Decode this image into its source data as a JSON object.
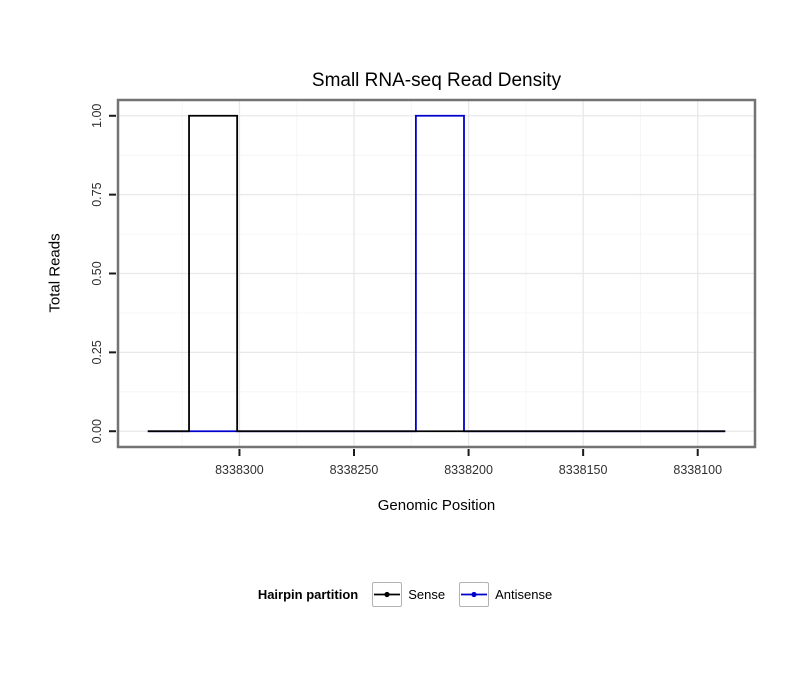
{
  "chart_data": {
    "type": "line",
    "title": "Small RNA-seq Read Density",
    "xlabel": "Genomic Position",
    "ylabel": "Total Reads",
    "x_reversed": true,
    "xlim": [
      8338353,
      8338075
    ],
    "ylim": [
      -0.05,
      1.05
    ],
    "x_ticks": [
      8338300,
      8338250,
      8338200,
      8338150,
      8338100
    ],
    "x_tick_labels": [
      "8338300",
      "8338250",
      "8338200",
      "8338150",
      "8338100"
    ],
    "x_minor_ticks": [
      8338325,
      8338275,
      8338225,
      8338175,
      8338125
    ],
    "y_ticks": [
      0,
      0.25,
      0.5,
      0.75,
      1
    ],
    "y_tick_labels": [
      "0.00",
      "0.25",
      "0.50",
      "0.75",
      "1.00"
    ],
    "y_minor_ticks": [
      0.125,
      0.375,
      0.625,
      0.875
    ],
    "grid": true,
    "legend_position": "bottom",
    "series": [
      {
        "name": "Antisense",
        "color": "#0000CC",
        "points": [
          [
            8338340,
            0
          ],
          [
            8338223,
            0
          ],
          [
            8338223,
            1
          ],
          [
            8338202,
            1
          ],
          [
            8338202,
            0
          ],
          [
            8338088,
            0
          ]
        ]
      },
      {
        "name": "Sense",
        "color": "#000000",
        "points": [
          [
            8338340,
            0
          ],
          [
            8338322,
            0
          ],
          [
            8338322,
            1
          ],
          [
            8338301,
            1
          ],
          [
            8338301,
            0
          ],
          [
            8338088,
            0
          ]
        ]
      }
    ]
  },
  "legend": {
    "title": "Hairpin partition",
    "entries": [
      {
        "label": "Sense",
        "color": "#000000"
      },
      {
        "label": "Antisense",
        "color": "#0000CC"
      }
    ]
  },
  "colors": {
    "panel_border": "#737373",
    "grid_major": "#e8e8e8",
    "grid_minor": "#f6f6f6",
    "tick": "#1a1a1a",
    "tick_label": "#303030"
  }
}
